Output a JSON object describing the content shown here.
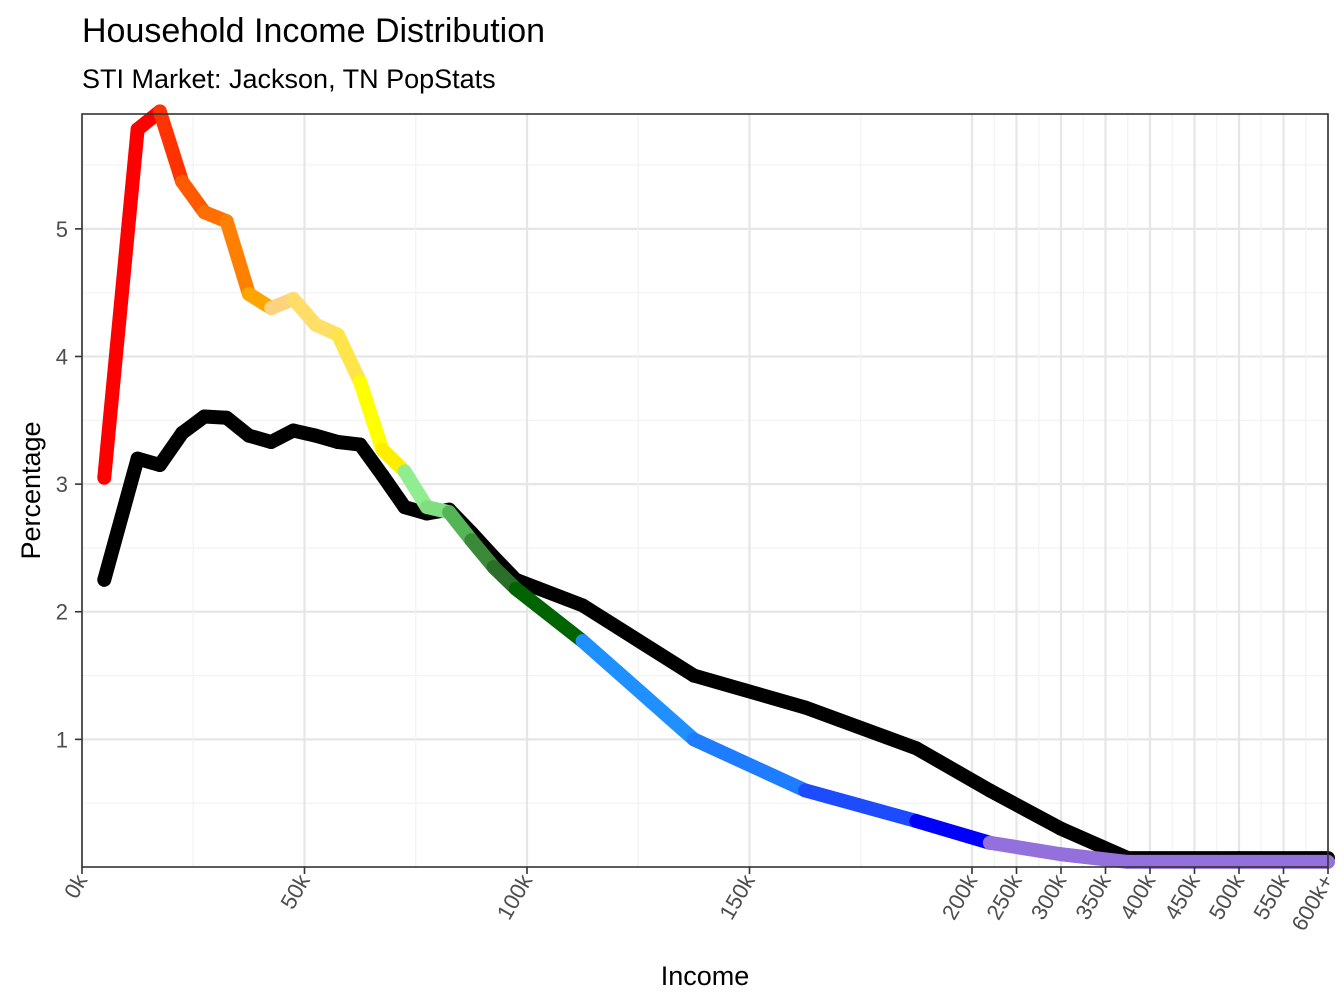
{
  "chart_data": {
    "type": "line",
    "title": "Household Income Distribution",
    "subtitle": "STI Market: Jackson, TN PopStats",
    "xlabel": "Income",
    "ylabel": "Percentage",
    "x_ticks": [
      {
        "label": "0k",
        "pos": 0
      },
      {
        "label": "50k",
        "pos": 50
      },
      {
        "label": "100k",
        "pos": 100
      },
      {
        "label": "150k",
        "pos": 150
      },
      {
        "label": "200k",
        "pos": 200
      },
      {
        "label": "250k",
        "pos": 210
      },
      {
        "label": "300k",
        "pos": 220
      },
      {
        "label": "350k",
        "pos": 230
      },
      {
        "label": "400k",
        "pos": 240
      },
      {
        "label": "450k",
        "pos": 250
      },
      {
        "label": "500k",
        "pos": 260
      },
      {
        "label": "550k",
        "pos": 270
      },
      {
        "label": "600k+",
        "pos": 280
      }
    ],
    "y_ticks": [
      1,
      2,
      3,
      4,
      5
    ],
    "ylim": [
      0,
      5.9
    ],
    "grid": true,
    "series": [
      {
        "color": "#000000",
        "points": [
          [
            5,
            2.25
          ],
          [
            12.5,
            3.2
          ],
          [
            17.5,
            3.15
          ],
          [
            22.5,
            3.4
          ],
          [
            27.5,
            3.53
          ],
          [
            32.5,
            3.52
          ],
          [
            37.5,
            3.38
          ],
          [
            42.5,
            3.33
          ],
          [
            47.5,
            3.42
          ],
          [
            52.5,
            3.38
          ],
          [
            57.5,
            3.33
          ],
          [
            62.5,
            3.31
          ],
          [
            67.5,
            3.07
          ],
          [
            72.5,
            2.82
          ],
          [
            77.5,
            2.77
          ],
          [
            82.5,
            2.8
          ],
          [
            87.5,
            2.62
          ],
          [
            92.5,
            2.43
          ],
          [
            97.5,
            2.25
          ],
          [
            112.5,
            2.05
          ],
          [
            137.5,
            1.5
          ],
          [
            162.5,
            1.25
          ],
          [
            187.5,
            0.93
          ],
          [
            204,
            0.6
          ],
          [
            220,
            0.3
          ],
          [
            235,
            0.07
          ],
          [
            260,
            0.07
          ],
          [
            280,
            0.07
          ]
        ]
      },
      {
        "color": "gradient",
        "points": [
          [
            5,
            3.05,
            "#ff0000"
          ],
          [
            12.5,
            5.78,
            "#ff0000"
          ],
          [
            17.5,
            5.92,
            "#ff3300"
          ],
          [
            22.5,
            5.37,
            "#ff5a00"
          ],
          [
            27.5,
            5.13,
            "#ff6e00"
          ],
          [
            32.5,
            5.06,
            "#ff8000"
          ],
          [
            37.5,
            4.49,
            "#ffa500"
          ],
          [
            42.5,
            4.38,
            "#ffd27f"
          ],
          [
            47.5,
            4.45,
            "#ffdd66"
          ],
          [
            52.5,
            4.25,
            "#ffe066"
          ],
          [
            57.5,
            4.17,
            "#ffe54a"
          ],
          [
            62.5,
            3.8,
            "#ffff00"
          ],
          [
            67.5,
            3.27,
            "#ffee00"
          ],
          [
            72.5,
            3.1,
            "#90ee90"
          ],
          [
            77.5,
            2.82,
            "#80dd80"
          ],
          [
            82.5,
            2.78,
            "#55b455"
          ],
          [
            87.5,
            2.56,
            "#3a8a3a"
          ],
          [
            92.5,
            2.35,
            "#2a6e2a"
          ],
          [
            97.5,
            2.18,
            "#006400"
          ],
          [
            112.5,
            1.77,
            "#1e90ff"
          ],
          [
            137.5,
            1.0,
            "#1e7cff"
          ],
          [
            162.5,
            0.6,
            "#1d4bff"
          ],
          [
            187.5,
            0.36,
            "#0000ff"
          ],
          [
            204,
            0.19,
            "#9370db"
          ],
          [
            220,
            0.1,
            "#9370db"
          ],
          [
            235,
            0.04,
            "#9370db"
          ],
          [
            260,
            0.04,
            "#9370db"
          ],
          [
            280,
            0.04,
            "#6a2fb0"
          ]
        ]
      }
    ]
  }
}
